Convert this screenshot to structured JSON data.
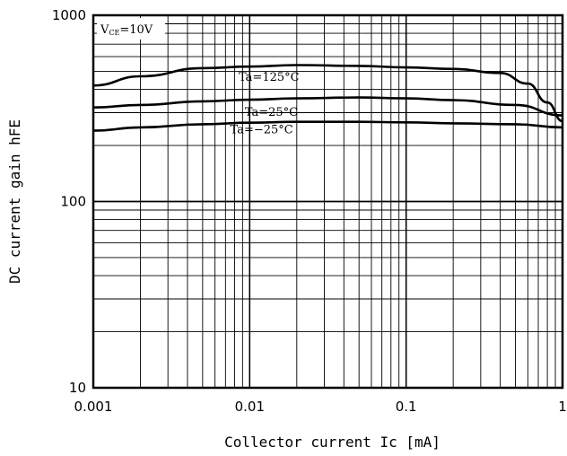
{
  "chart_data": {
    "type": "line",
    "xscale": "log",
    "yscale": "log",
    "xlim": [
      0.001,
      1
    ],
    "ylim": [
      10,
      1000
    ],
    "grid": true,
    "legend": "none",
    "xlabel": "Collector current Ic [mA]",
    "ylabel": "DC current gain hFE",
    "xticks": [
      "0.001",
      "0.01",
      "0.1",
      "1"
    ],
    "yticks": [
      "10",
      "100",
      "1000"
    ],
    "condition": {
      "main": "V",
      "sub": "CE",
      "rest": "=10V"
    },
    "series": [
      {
        "name": "Ta=125°C",
        "x": [
          0.001,
          0.002,
          0.005,
          0.01,
          0.02,
          0.05,
          0.1,
          0.2,
          0.4,
          0.6,
          0.8,
          1.0
        ],
        "y": [
          420,
          470,
          520,
          530,
          540,
          535,
          525,
          515,
          490,
          430,
          340,
          270
        ]
      },
      {
        "name": "Ta=25°C",
        "x": [
          0.001,
          0.002,
          0.005,
          0.01,
          0.02,
          0.05,
          0.1,
          0.2,
          0.5,
          1.0
        ],
        "y": [
          320,
          330,
          345,
          352,
          358,
          362,
          358,
          350,
          330,
          290
        ]
      },
      {
        "name": "Ta=−25°C",
        "x": [
          0.001,
          0.002,
          0.005,
          0.01,
          0.02,
          0.05,
          0.1,
          0.2,
          0.5,
          1.0
        ],
        "y": [
          240,
          250,
          260,
          265,
          268,
          268,
          266,
          263,
          260,
          250
        ]
      }
    ]
  }
}
